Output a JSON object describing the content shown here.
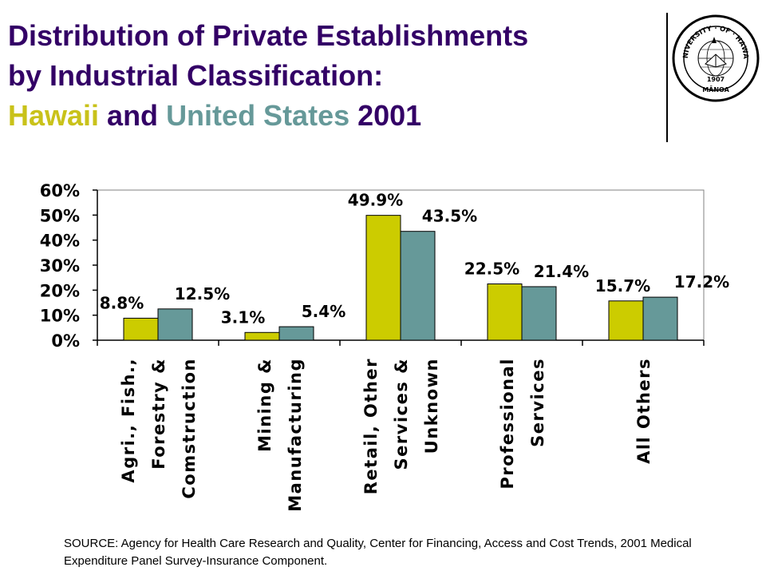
{
  "title": {
    "line1": "Distribution of Private Establishments",
    "line2": "by Industrial Classification:",
    "hawaii": "Hawaii",
    "and": " and ",
    "us": "United States",
    "year": " 2001"
  },
  "logo": {
    "top_text": "UNIVERSITY · OF · HAWAII",
    "year": "1907",
    "bottom_text": "MĀNOA"
  },
  "colors": {
    "title": "#330066",
    "hawaii": "#cccc00",
    "us": "#669999"
  },
  "chart_data": {
    "type": "bar",
    "categories": [
      [
        "Agri., Fish.,",
        "Forestry &",
        "Comstruction"
      ],
      [
        "Mining &",
        "Manufacturing"
      ],
      [
        "Retail, Other",
        "Services &",
        "Unknown"
      ],
      [
        "Professional",
        "Services"
      ],
      [
        "All Others"
      ]
    ],
    "series": [
      {
        "color": "#cccc00",
        "values": [
          8.8,
          3.1,
          49.9,
          22.5,
          15.7
        ],
        "labels": [
          "8.8%",
          "3.1%",
          "49.9%",
          "22.5%",
          "15.7%"
        ]
      },
      {
        "color": "#669999",
        "values": [
          12.5,
          5.4,
          43.5,
          21.4,
          17.2
        ],
        "labels": [
          "12.5%",
          "5.4%",
          "43.5%",
          "21.4%",
          "17.2%"
        ]
      }
    ],
    "ylim": [
      0,
      60
    ],
    "yticks": [
      "0%",
      "10%",
      "20%",
      "30%",
      "40%",
      "50%",
      "60%"
    ],
    "grid": false,
    "legend": "none"
  },
  "source": "SOURCE: Agency for Health Care Research and Quality, Center for Financing, Access and Cost Trends, 2001 Medical Expenditure Panel Survey-Insurance Component."
}
